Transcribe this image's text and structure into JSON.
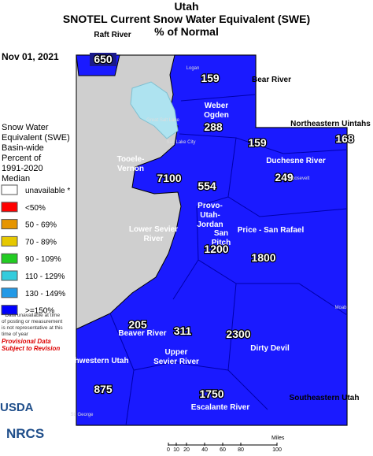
{
  "header": {
    "title_lines": [
      "Utah",
      "SNOTEL Current Snow Water Equivalent (SWE)",
      "% of Normal"
    ],
    "date": "Nov 01, 2021"
  },
  "legend": {
    "title_lines": [
      "Snow Water",
      "Equivalent (SWE)",
      "Basin-wide",
      "Percent of",
      "1991-2020",
      "Median"
    ],
    "items": [
      {
        "label": "unavailable *",
        "color": "#ffffff"
      },
      {
        "label": "<50%",
        "color": "#ff0000"
      },
      {
        "label": "50 - 69%",
        "color": "#e69500"
      },
      {
        "label": "70 - 89%",
        "color": "#e6c800"
      },
      {
        "label": "90 - 109%",
        "color": "#22cc22"
      },
      {
        "label": "110 - 129%",
        "color": "#33ccdd"
      },
      {
        "label": "130 - 149%",
        "color": "#2299e6"
      },
      {
        "label": ">=150%",
        "color": "#0000ff"
      }
    ],
    "note_lines": [
      "* Data unavailable at time",
      "of posting or measurement",
      "is not representative at this",
      "time of year"
    ],
    "provisional_lines": [
      "Provisional Data",
      "Subject to Revision"
    ]
  },
  "basins": [
    {
      "name_lines": [
        "Raft River"
      ],
      "value": 650
    },
    {
      "name_lines": [
        "Bear River"
      ],
      "value": 159
    },
    {
      "name_lines": [
        "Weber",
        "Ogden"
      ],
      "value": 288
    },
    {
      "name_lines": [],
      "value": 159
    },
    {
      "name_lines": [
        "Northeastern Uintahs"
      ],
      "value": 168
    },
    {
      "name_lines": [
        "Duchesne River"
      ],
      "value": 249
    },
    {
      "name_lines": [
        "Tooele-",
        "Vernon"
      ],
      "value": 7100
    },
    {
      "name_lines": [
        "Provo-",
        "Utah-",
        "Jordan"
      ],
      "value": 554
    },
    {
      "name_lines": [
        "San",
        "Pitch"
      ],
      "value": 1200
    },
    {
      "name_lines": [
        "Price - San Rafael"
      ],
      "value": 1800
    },
    {
      "name_lines": [
        "Lower Sevier",
        "River"
      ],
      "value": null
    },
    {
      "name_lines": [
        "Beaver River"
      ],
      "value": 205
    },
    {
      "name_lines": [
        "Upper",
        "Sevier River"
      ],
      "value": 311
    },
    {
      "name_lines": [
        "Dirty Devil"
      ],
      "value": 2300
    },
    {
      "name_lines": [
        "Southwestern Utah"
      ],
      "value": 875
    },
    {
      "name_lines": [
        "Escalante River"
      ],
      "value": 1750
    },
    {
      "name_lines": [
        "Southeastern Utah"
      ],
      "value": null
    }
  ],
  "places": [
    "Logan",
    "Great Salt Lake",
    "Salt Lake City",
    "Roosevelt",
    "Moab",
    "St. George"
  ],
  "scale": {
    "label": "Miles",
    "ticks": [
      "0",
      "10",
      "20",
      "40",
      "60",
      "80",
      "100"
    ]
  },
  "logos": [
    "USDA",
    "NRCS"
  ]
}
